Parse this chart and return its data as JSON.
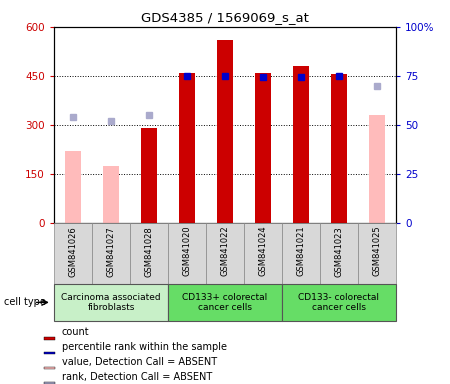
{
  "title": "GDS4385 / 1569069_s_at",
  "samples": [
    "GSM841026",
    "GSM841027",
    "GSM841028",
    "GSM841020",
    "GSM841022",
    "GSM841024",
    "GSM841021",
    "GSM841023",
    "GSM841025"
  ],
  "count_values": [
    null,
    null,
    290,
    460,
    560,
    460,
    480,
    455,
    null
  ],
  "rank_values": [
    null,
    null,
    null,
    75,
    75,
    74.5,
    74.5,
    75,
    null
  ],
  "value_absent": [
    220,
    175,
    null,
    null,
    null,
    null,
    null,
    null,
    330
  ],
  "rank_absent": [
    54,
    52,
    55,
    null,
    null,
    null,
    null,
    null,
    70
  ],
  "groups": [
    {
      "label": "Carcinoma associated\nfibroblasts",
      "start": 0,
      "end": 3,
      "color": "#c8f0c8"
    },
    {
      "label": "CD133+ colorectal\ncancer cells",
      "start": 3,
      "end": 6,
      "color": "#66dd66"
    },
    {
      "label": "CD133- colorectal\ncancer cells",
      "start": 6,
      "end": 9,
      "color": "#66dd66"
    }
  ],
  "ylim_left": [
    0,
    600
  ],
  "ylim_right": [
    0,
    100
  ],
  "yticks_left": [
    0,
    150,
    300,
    450,
    600
  ],
  "yticks_right": [
    0,
    25,
    50,
    75,
    100
  ],
  "yticklabels_right": [
    "0",
    "25",
    "50",
    "75",
    "100%"
  ],
  "bar_color_count": "#cc0000",
  "bar_color_absent": "#ffbbbb",
  "dot_color_rank": "#0000cc",
  "dot_color_rank_absent": "#aaaacc",
  "tick_color_left": "#cc0000",
  "tick_color_right": "#0000cc",
  "legend_items": [
    {
      "color": "#cc0000",
      "label": "count",
      "marker": "s"
    },
    {
      "color": "#0000cc",
      "label": "percentile rank within the sample",
      "marker": "s"
    },
    {
      "color": "#ffbbbb",
      "label": "value, Detection Call = ABSENT",
      "marker": "s"
    },
    {
      "color": "#aaaacc",
      "label": "rank, Detection Call = ABSENT",
      "marker": "s"
    }
  ],
  "cell_type_label": "cell type",
  "bar_width": 0.4
}
